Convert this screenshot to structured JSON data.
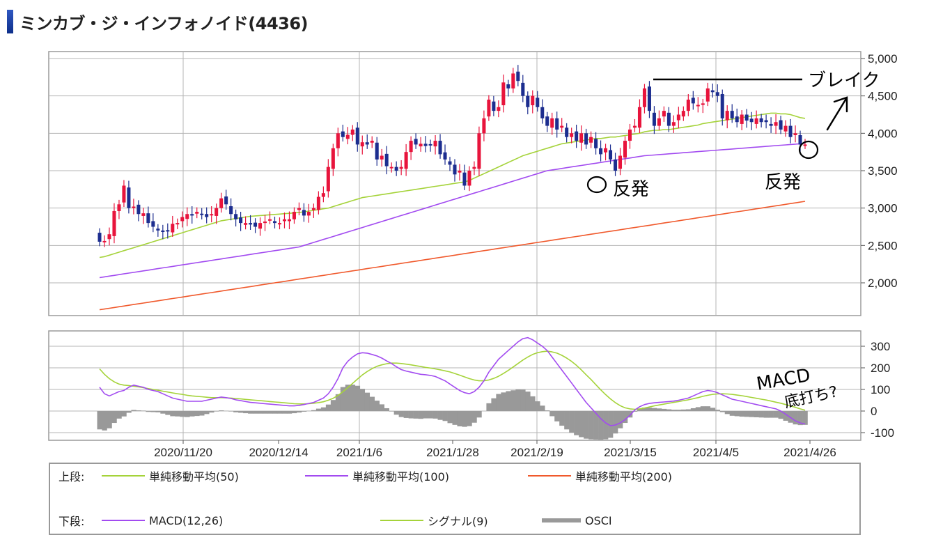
{
  "page": {
    "title": "ミンカブ・ジ・インフォノイド(4436)"
  },
  "colors": {
    "up": "#e8143c",
    "down": "#1c2d8f",
    "sma50": "#a5d33a",
    "sma100": "#a24bf0",
    "sma200": "#f0592c",
    "macd": "#a24bf0",
    "signal": "#a5d33a",
    "osci": "#999999",
    "grid": "#b4b4b4"
  },
  "chart_data": [
    {
      "type": "candlestick",
      "panel": "upper",
      "y_ticks": [
        "5,000",
        "4,500",
        "4,000",
        "3,500",
        "3,000",
        "2,500",
        "2,000"
      ],
      "y_tick_values": [
        5000,
        4500,
        4000,
        3500,
        3000,
        2500,
        2000
      ],
      "ylim": [
        1600,
        5000
      ],
      "x_labels": [
        "2020/11/20",
        "2020/12/14",
        "2021/1/6",
        "2021/1/28",
        "2021/2/19",
        "2021/3/15",
        "2021/4/5",
        "2021/4/26"
      ],
      "grid": true,
      "close": [
        2550,
        2560,
        2650,
        2960,
        3050,
        3300,
        3000,
        3020,
        2920,
        2930,
        2800,
        2750,
        2700,
        2680,
        2700,
        2790,
        2800,
        2880,
        2920,
        2900,
        2950,
        2920,
        2880,
        2920,
        3000,
        3130,
        3050,
        2920,
        2850,
        2800,
        2800,
        2780,
        2750,
        2800,
        2820,
        2850,
        2800,
        2800,
        2850,
        2850,
        2950,
        3000,
        2900,
        2950,
        3000,
        3150,
        3200,
        3550,
        3800,
        4000,
        3950,
        3980,
        4050,
        3850,
        3880,
        3850,
        3900,
        3650,
        3700,
        3560,
        3550,
        3500,
        3550,
        3750,
        3900,
        3850,
        3860,
        3830,
        3850,
        3900,
        3720,
        3650,
        3580,
        3450,
        3500,
        3300,
        3500,
        3550,
        4000,
        4200,
        4450,
        4300,
        4350,
        4680,
        4600,
        4800,
        4700,
        4500,
        4350,
        4500,
        4350,
        4200,
        4100,
        4200,
        4050,
        4100,
        3950,
        4000,
        3900,
        4000,
        3850,
        3950,
        3800,
        3720,
        3800,
        3650,
        3500,
        3700,
        3900,
        4050,
        4100,
        4350,
        4600,
        4300,
        4100,
        4200,
        4300,
        4100,
        4150,
        4250,
        4300,
        4450,
        4400,
        4380,
        4400,
        4600,
        4550,
        4500,
        4200,
        4300,
        4200,
        4150,
        4250,
        4170,
        4150,
        4200,
        4150,
        4150,
        4100,
        4150,
        4050,
        4100,
        3950,
        4000,
        3850,
        3850
      ],
      "sma50": [
        2340,
        2350,
        2370,
        2390,
        2410,
        2430,
        2450,
        2470,
        2490,
        2510,
        2530,
        2550,
        2570,
        2590,
        2610,
        2630,
        2650,
        2670,
        2690,
        2710,
        2730,
        2750,
        2770,
        2790,
        2810,
        2830,
        2840,
        2850,
        2860,
        2870,
        2880,
        2890,
        2895,
        2900,
        2905,
        2910,
        2915,
        2920,
        2925,
        2930,
        2935,
        2940,
        2950,
        2960,
        2970,
        2980,
        2990,
        3000,
        3020,
        3040,
        3060,
        3080,
        3100,
        3120,
        3140,
        3150,
        3160,
        3170,
        3180,
        3190,
        3200,
        3210,
        3220,
        3230,
        3240,
        3250,
        3260,
        3270,
        3280,
        3290,
        3300,
        3310,
        3320,
        3330,
        3340,
        3350,
        3370,
        3400,
        3430,
        3460,
        3490,
        3520,
        3550,
        3580,
        3610,
        3640,
        3670,
        3700,
        3720,
        3740,
        3760,
        3780,
        3800,
        3820,
        3840,
        3860,
        3870,
        3880,
        3890,
        3900,
        3910,
        3920,
        3930,
        3930,
        3940,
        3950,
        3950,
        3960,
        3970,
        3980,
        3990,
        4000,
        4020,
        4030,
        4040,
        4040,
        4050,
        4050,
        4060,
        4070,
        4080,
        4090,
        4100,
        4110,
        4130,
        4140,
        4150,
        4160,
        4170,
        4180,
        4190,
        4200,
        4210,
        4220,
        4230,
        4240,
        4250,
        4260,
        4270,
        4270,
        4260,
        4260,
        4250,
        4230,
        4210,
        4200
      ],
      "sma100": [
        2070,
        2080,
        2090,
        2100,
        2110,
        2120,
        2130,
        2140,
        2150,
        2160,
        2170,
        2180,
        2190,
        2200,
        2210,
        2220,
        2230,
        2240,
        2250,
        2260,
        2270,
        2280,
        2290,
        2300,
        2310,
        2320,
        2330,
        2340,
        2350,
        2360,
        2370,
        2380,
        2390,
        2400,
        2410,
        2420,
        2430,
        2440,
        2450,
        2460,
        2470,
        2480,
        2500,
        2520,
        2540,
        2560,
        2580,
        2600,
        2620,
        2640,
        2660,
        2680,
        2700,
        2720,
        2740,
        2760,
        2780,
        2800,
        2820,
        2840,
        2860,
        2880,
        2900,
        2920,
        2940,
        2960,
        2980,
        3000,
        3020,
        3040,
        3060,
        3080,
        3100,
        3120,
        3140,
        3160,
        3180,
        3200,
        3220,
        3240,
        3260,
        3280,
        3300,
        3320,
        3340,
        3360,
        3380,
        3400,
        3420,
        3440,
        3460,
        3480,
        3500,
        3510,
        3520,
        3530,
        3540,
        3550,
        3560,
        3570,
        3580,
        3590,
        3600,
        3610,
        3620,
        3630,
        3640,
        3650,
        3660,
        3670,
        3680,
        3690,
        3700,
        3705,
        3710,
        3715,
        3720,
        3725,
        3730,
        3735,
        3740,
        3745,
        3750,
        3755,
        3760,
        3765,
        3770,
        3775,
        3780,
        3785,
        3790,
        3795,
        3800,
        3805,
        3810,
        3815,
        3820,
        3825,
        3830,
        3835,
        3840,
        3845,
        3850,
        3855,
        3860,
        3870
      ],
      "sma200": [
        1640,
        1650,
        1660,
        1670,
        1680,
        1690,
        1700,
        1710,
        1720,
        1730,
        1740,
        1750,
        1760,
        1770,
        1780,
        1790,
        1800,
        1810,
        1820,
        1830,
        1840,
        1850,
        1860,
        1870,
        1880,
        1890,
        1900,
        1910,
        1920,
        1930,
        1940,
        1950,
        1960,
        1970,
        1980,
        1990,
        2000,
        2010,
        2020,
        2030,
        2040,
        2050,
        2060,
        2070,
        2080,
        2090,
        2100,
        2110,
        2120,
        2130,
        2140,
        2150,
        2160,
        2170,
        2180,
        2190,
        2200,
        2210,
        2220,
        2230,
        2240,
        2250,
        2260,
        2270,
        2280,
        2290,
        2300,
        2310,
        2320,
        2330,
        2340,
        2350,
        2360,
        2370,
        2380,
        2390,
        2400,
        2410,
        2420,
        2430,
        2440,
        2450,
        2460,
        2470,
        2480,
        2490,
        2500,
        2510,
        2520,
        2530,
        2540,
        2550,
        2560,
        2570,
        2580,
        2590,
        2600,
        2610,
        2620,
        2630,
        2640,
        2650,
        2660,
        2670,
        2680,
        2690,
        2700,
        2710,
        2720,
        2730,
        2740,
        2750,
        2760,
        2770,
        2780,
        2790,
        2800,
        2810,
        2820,
        2830,
        2840,
        2850,
        2860,
        2870,
        2880,
        2890,
        2900,
        2910,
        2920,
        2930,
        2940,
        2950,
        2960,
        2970,
        2980,
        2990,
        3000,
        3010,
        3020,
        3030,
        3040,
        3050,
        3060,
        3070,
        3080,
        3090
      ]
    },
    {
      "type": "macd",
      "panel": "lower",
      "y_ticks": [
        "300",
        "200",
        "100",
        "0",
        "-100"
      ],
      "y_tick_values": [
        300,
        200,
        100,
        0,
        -100
      ],
      "ylim": [
        -140,
        350
      ],
      "macd": [
        110,
        80,
        70,
        80,
        90,
        95,
        110,
        120,
        115,
        110,
        100,
        95,
        90,
        80,
        70,
        60,
        55,
        50,
        45,
        45,
        45,
        45,
        50,
        55,
        60,
        65,
        62,
        58,
        52,
        48,
        44,
        40,
        38,
        36,
        34,
        32,
        30,
        28,
        26,
        24,
        24,
        26,
        30,
        35,
        40,
        50,
        60,
        80,
        110,
        150,
        200,
        230,
        250,
        265,
        270,
        268,
        262,
        255,
        245,
        232,
        220,
        205,
        192,
        185,
        180,
        175,
        170,
        168,
        165,
        160,
        150,
        140,
        125,
        110,
        95,
        85,
        80,
        90,
        110,
        140,
        180,
        210,
        240,
        260,
        280,
        300,
        320,
        335,
        340,
        330,
        315,
        300,
        280,
        250,
        220,
        190,
        160,
        130,
        100,
        70,
        40,
        15,
        -10,
        -35,
        -55,
        -68,
        -65,
        -55,
        -40,
        -20,
        5,
        20,
        30,
        35,
        38,
        40,
        42,
        44,
        46,
        50,
        55,
        60,
        70,
        80,
        90,
        95,
        92,
        85,
        75,
        65,
        55,
        50,
        45,
        40,
        35,
        30,
        25,
        20,
        15,
        10,
        0,
        -15,
        -30,
        -45,
        -55,
        -60
      ],
      "signal": [
        195,
        170,
        150,
        135,
        125,
        120,
        118,
        115,
        112,
        108,
        104,
        100,
        96,
        92,
        88,
        84,
        80,
        77,
        73,
        70,
        68,
        66,
        64,
        62,
        62,
        62,
        61,
        60,
        58,
        56,
        54,
        52,
        50,
        48,
        46,
        44,
        42,
        40,
        38,
        36,
        34,
        33,
        33,
        34,
        36,
        39,
        43,
        50,
        59,
        72,
        89,
        108,
        128,
        148,
        167,
        183,
        196,
        207,
        214,
        219,
        222,
        222,
        220,
        217,
        214,
        210,
        206,
        202,
        199,
        195,
        191,
        186,
        181,
        174,
        166,
        158,
        150,
        144,
        140,
        140,
        144,
        151,
        161,
        174,
        188,
        204,
        220,
        236,
        250,
        262,
        270,
        275,
        277,
        274,
        268,
        258,
        245,
        230,
        212,
        191,
        168,
        146,
        122,
        98,
        76,
        56,
        39,
        25,
        15,
        10,
        8,
        10,
        14,
        19,
        24,
        28,
        32,
        36,
        40,
        44,
        48,
        52,
        57,
        62,
        68,
        73,
        77,
        79,
        80,
        79,
        77,
        74,
        71,
        67,
        63,
        59,
        55,
        51,
        46,
        41,
        36,
        30,
        24,
        17,
        10,
        4
      ],
      "osci": [
        -85,
        -90,
        -80,
        -55,
        -35,
        -25,
        -8,
        5,
        3,
        2,
        -4,
        -5,
        -6,
        -12,
        -18,
        -24,
        -25,
        -27,
        -28,
        -25,
        -23,
        -21,
        -14,
        -7,
        -2,
        3,
        1,
        -2,
        -6,
        -8,
        -10,
        -12,
        -12,
        -12,
        -12,
        -12,
        -12,
        -12,
        -12,
        -12,
        -10,
        -7,
        -3,
        1,
        4,
        11,
        17,
        30,
        51,
        78,
        111,
        122,
        122,
        117,
        103,
        85,
        66,
        48,
        31,
        13,
        -2,
        -17,
        -28,
        -32,
        -34,
        -35,
        -36,
        -34,
        -34,
        -35,
        -41,
        -46,
        -56,
        -64,
        -71,
        -73,
        -70,
        -54,
        -30,
        0,
        36,
        59,
        79,
        86,
        92,
        96,
        100,
        99,
        90,
        68,
        45,
        25,
        3,
        -24,
        -48,
        -68,
        -85,
        -100,
        -112,
        -121,
        -128,
        -131,
        -132,
        -133,
        -131,
        -124,
        -104,
        -80,
        -55,
        -30,
        -3,
        10,
        16,
        16,
        14,
        12,
        10,
        8,
        6,
        6,
        7,
        8,
        13,
        18,
        22,
        22,
        15,
        6,
        -5,
        -14,
        -22,
        -24,
        -26,
        -27,
        -28,
        -29,
        -30,
        -31,
        -31,
        -31,
        -36,
        -45,
        -54,
        -62,
        -65,
        -64
      ]
    }
  ],
  "legend": {
    "upper_label": "上段:",
    "lower_label": "下段:",
    "sma50": "単純移動平均(50)",
    "sma100": "単純移動平均(100)",
    "sma200": "単純移動平均(200)",
    "macd": "MACD(12,26)",
    "signal": "シグナル(9)",
    "osci": "OSCI"
  },
  "annotations": {
    "break_label": "ブレイク",
    "rebound1": "反発",
    "rebound2": "反発",
    "macd_note": "MACD",
    "macd_note2": "底打ち?"
  }
}
